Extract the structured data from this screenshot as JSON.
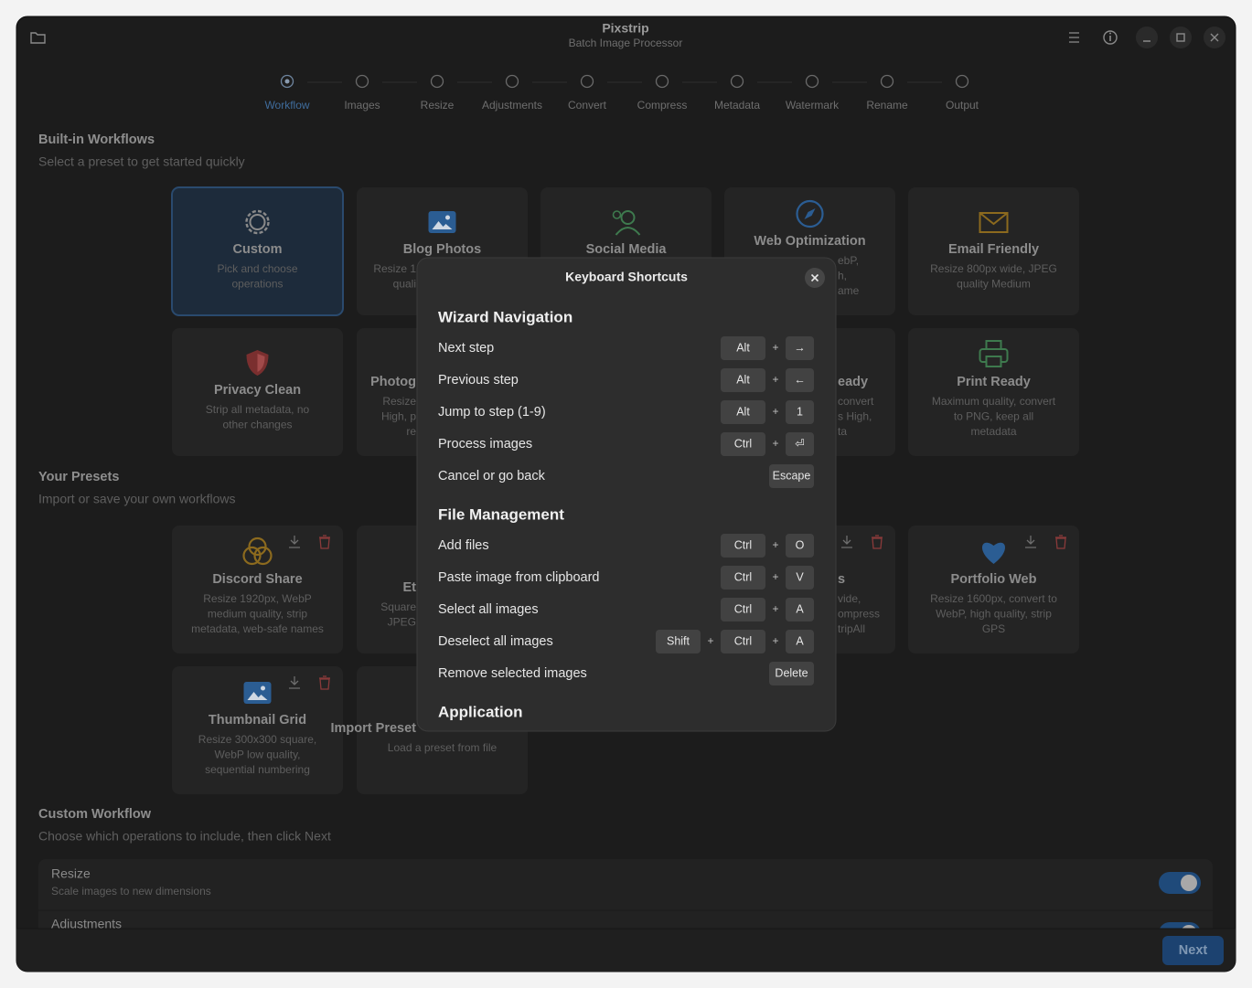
{
  "window": {
    "title": "Pixstrip",
    "subtitle": "Batch Image Processor"
  },
  "steps": [
    "Workflow",
    "Images",
    "Resize",
    "Adjustments",
    "Convert",
    "Compress",
    "Metadata",
    "Watermark",
    "Rename",
    "Output"
  ],
  "builtin": {
    "heading": "Built-in Workflows",
    "subheading": "Select a preset to get started quickly",
    "rows": [
      [
        {
          "title": "Custom",
          "description": [
            "Pick and choose",
            "operations"
          ]
        },
        {
          "title": "Blog Photos",
          "description": [
            "Resize 1",
            "quali"
          ]
        },
        {
          "title": "Social Media"
        },
        {
          "title": "Web Optimization",
          "description": [
            "ebP,",
            "h,",
            "ame"
          ]
        },
        {
          "title": "Email Friendly",
          "description": [
            "Resize 800px wide, JPEG",
            "quality Medium"
          ]
        }
      ],
      [
        {
          "title": "Privacy Clean",
          "description": [
            "Strip all metadata, no",
            "other changes"
          ]
        },
        {
          "title": "Photog",
          "description": [
            "Resize",
            "High, p",
            "re"
          ]
        },
        null,
        {
          "title": "eady",
          "description": [
            "convert",
            "s High,",
            "ta"
          ]
        },
        {
          "title": "Print Ready",
          "description": [
            "Maximum quality, convert",
            "to PNG, keep all",
            "metadata"
          ]
        }
      ]
    ]
  },
  "user_presets": {
    "heading": "Your Presets",
    "subheading": "Import or save your own workflows",
    "rows": [
      [
        {
          "title": "Discord Share",
          "description": [
            "Resize 1920px, WebP",
            "medium quality, strip",
            "metadata, web-safe names"
          ]
        },
        {
          "title": "Et",
          "description": [
            "Square",
            "JPEG"
          ]
        },
        null,
        {
          "title": "s",
          "description": [
            "vide,",
            "ompress",
            "tripAll"
          ]
        },
        {
          "title": "Portfolio Web",
          "description": [
            "Resize 1600px, convert to",
            "WebP, high quality, strip",
            "GPS"
          ]
        }
      ],
      [
        {
          "title": "Thumbnail Grid",
          "description": [
            "Resize 300x300 square,",
            "WebP low quality,",
            "sequential numbering"
          ]
        },
        {
          "title": "Import Preset",
          "description": [
            "Load a preset from file"
          ]
        }
      ]
    ]
  },
  "custom_workflow": {
    "heading": "Custom Workflow",
    "subheading": "Choose which operations to include, then click Next",
    "operations": [
      {
        "name": "Resize",
        "description": "Scale images to new dimensions"
      },
      {
        "name": "Adjustments"
      }
    ]
  },
  "next_button": "Next",
  "dialog": {
    "title": "Keyboard Shortcuts",
    "key_separator": "+",
    "sections": [
      {
        "title": "Wizard Navigation",
        "rows": [
          {
            "label": "Next step",
            "keys": [
              "Alt",
              "→"
            ]
          },
          {
            "label": "Previous step",
            "keys": [
              "Alt",
              "←"
            ]
          },
          {
            "label": "Jump to step (1-9)",
            "keys": [
              "Alt",
              "1"
            ]
          },
          {
            "label": "Process images",
            "keys": [
              "Ctrl",
              "⏎"
            ]
          },
          {
            "label": "Cancel or go back",
            "keys": [
              "Escape"
            ]
          }
        ]
      },
      {
        "title": "File Management",
        "rows": [
          {
            "label": "Add files",
            "keys": [
              "Ctrl",
              "O"
            ]
          },
          {
            "label": "Paste image from clipboard",
            "keys": [
              "Ctrl",
              "V"
            ]
          },
          {
            "label": "Select all images",
            "keys": [
              "Ctrl",
              "A"
            ]
          },
          {
            "label": "Deselect all images",
            "keys": [
              "Shift",
              "Ctrl",
              "A"
            ]
          },
          {
            "label": "Remove selected images",
            "keys": [
              "Delete"
            ]
          }
        ]
      },
      {
        "title": "Application"
      }
    ]
  }
}
